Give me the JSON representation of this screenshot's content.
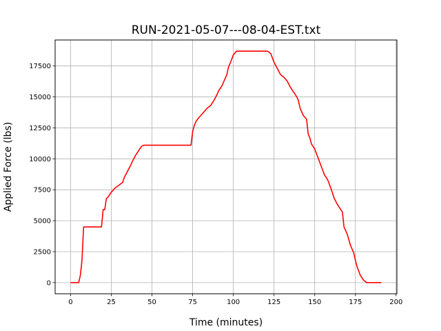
{
  "chart_data": {
    "type": "line",
    "title": "RUN-2021-05-07---08-04-EST.txt",
    "xlabel": "Time (minutes)",
    "ylabel": "Applied Force (lbs)",
    "xlim": [
      -9.5,
      200.5
    ],
    "ylim": [
      -900,
      19600
    ],
    "xticks": [
      0,
      25,
      50,
      75,
      100,
      125,
      150,
      175,
      200
    ],
    "yticks": [
      0,
      2500,
      5000,
      7500,
      10000,
      12500,
      15000,
      17500
    ],
    "xtick_labels": [
      "0",
      "25",
      "50",
      "75",
      "100",
      "125",
      "150",
      "175",
      "200"
    ],
    "ytick_labels": [
      "0",
      "2500",
      "5000",
      "7500",
      "10000",
      "12500",
      "15000",
      "17500"
    ],
    "grid": true,
    "series": [
      {
        "color": "#ff0000",
        "x": [
          0,
          3,
          5,
          6,
          7,
          8,
          10,
          19,
          20,
          21,
          22,
          23,
          25,
          27,
          30,
          32,
          33,
          35,
          37,
          38,
          40,
          42,
          43,
          44,
          45,
          47,
          50,
          55,
          60,
          65,
          70,
          74,
          75,
          76,
          77,
          78,
          80,
          82,
          84,
          86,
          88,
          90,
          91,
          93,
          95,
          96,
          97,
          98,
          100,
          102,
          104,
          110,
          115,
          120,
          121,
          123,
          125,
          127,
          129,
          131,
          133,
          135,
          137,
          139,
          140,
          141,
          143,
          145,
          146,
          147,
          148,
          150,
          152,
          154,
          156,
          158,
          160,
          162,
          164,
          165,
          167,
          168,
          170,
          172,
          174,
          175,
          176,
          178,
          180,
          182,
          184,
          186,
          188,
          191
        ],
        "y": [
          0,
          0,
          0,
          600,
          1800,
          4500,
          4500,
          4500,
          5900,
          5900,
          6800,
          6900,
          7300,
          7600,
          7900,
          8100,
          8500,
          9000,
          9500,
          9800,
          10300,
          10700,
          10900,
          11050,
          11100,
          11100,
          11100,
          11100,
          11100,
          11100,
          11100,
          11100,
          12200,
          12700,
          13000,
          13200,
          13500,
          13800,
          14100,
          14300,
          14700,
          15200,
          15500,
          15900,
          16500,
          16800,
          17400,
          17700,
          18400,
          18700,
          18700,
          18700,
          18700,
          18700,
          18700,
          18500,
          17800,
          17300,
          16800,
          16600,
          16300,
          15800,
          15400,
          15000,
          14700,
          14100,
          13500,
          13200,
          12000,
          11700,
          11200,
          10800,
          10100,
          9400,
          8700,
          8300,
          7600,
          6800,
          6300,
          6100,
          5700,
          4500,
          3900,
          3000,
          2400,
          1800,
          1300,
          600,
          200,
          0,
          0,
          0,
          0,
          0
        ]
      }
    ]
  }
}
